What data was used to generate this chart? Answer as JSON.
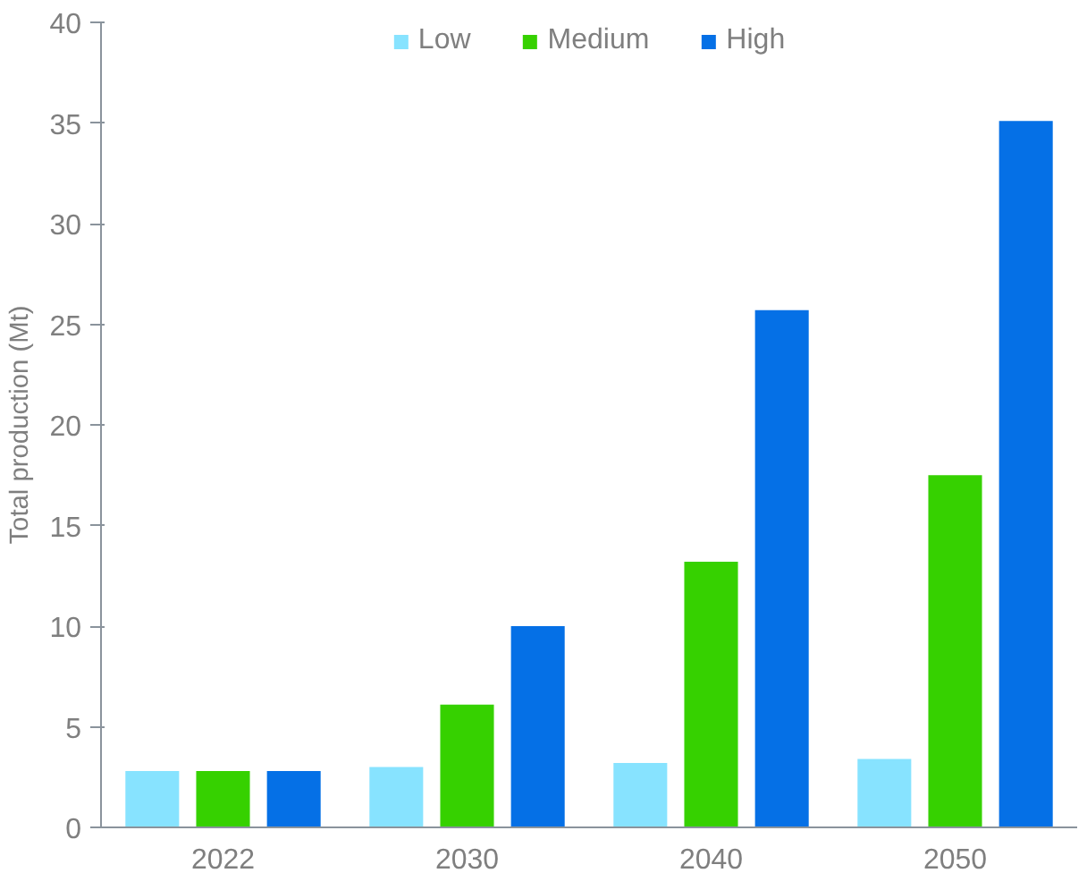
{
  "chart_data": {
    "type": "bar",
    "ylabel": "Total production (Mt)",
    "categories": [
      "2022",
      "2030",
      "2040",
      "2050"
    ],
    "series": [
      {
        "name": "Low",
        "color": "#87e3ff",
        "values": [
          2.8,
          3.0,
          3.2,
          3.4
        ]
      },
      {
        "name": "Medium",
        "color": "#36d100",
        "values": [
          2.8,
          6.1,
          13.2,
          17.5
        ]
      },
      {
        "name": "High",
        "color": "#0570e6",
        "values": [
          2.8,
          10.0,
          25.7,
          35.1
        ]
      }
    ],
    "ylim": [
      0,
      40
    ],
    "yticks": [
      0,
      5,
      10,
      15,
      20,
      25,
      30,
      35,
      40
    ],
    "grid": false,
    "legend": "top"
  }
}
